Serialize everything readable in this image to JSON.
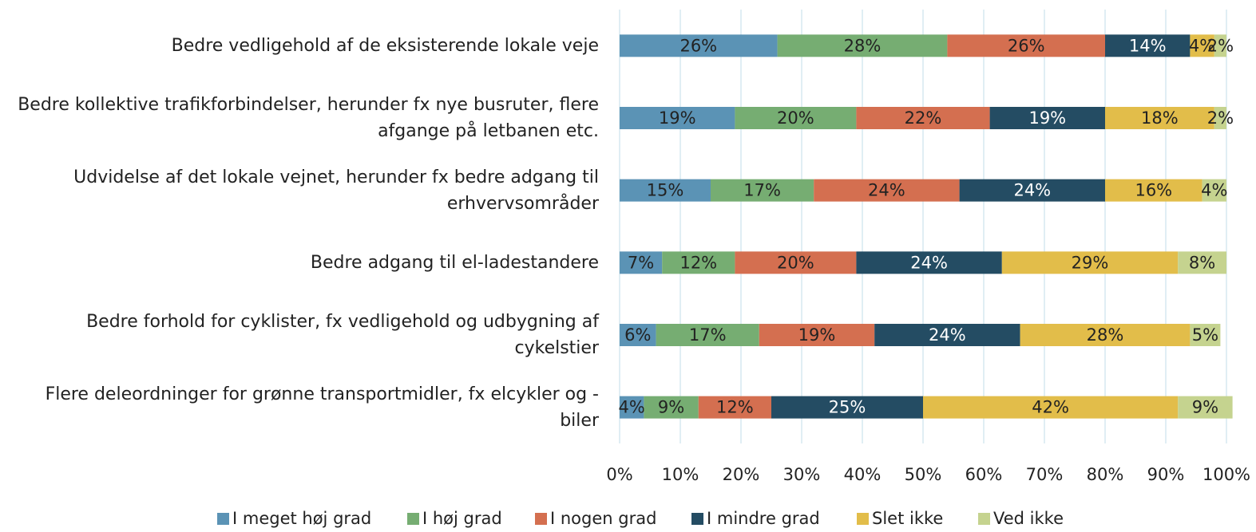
{
  "chart_data": {
    "type": "stacked-bar-horizontal",
    "categories": [
      "Bedre vedligehold af de eksisterende lokale veje",
      "Bedre kollektive trafikforbindelser, herunder fx nye busruter, flere afgange på letbanen etc.",
      "Udvidelse af det lokale vejnet, herunder fx bedre adgang til erhvervsområder",
      "Bedre adgang til el-ladestandere",
      "Bedre forhold for cyklister, fx vedligehold og udbygning af cykelstier",
      "Flere deleordninger for grønne transportmidler, fx elcykler og -biler"
    ],
    "series": [
      {
        "name": "I meget høj grad",
        "color": "#5b93b5",
        "values": [
          26,
          19,
          15,
          7,
          6,
          4
        ],
        "value_labels": [
          "26%",
          "19%",
          "15%",
          "7%",
          "6%",
          "4%"
        ]
      },
      {
        "name": "I høj grad",
        "color": "#76ad72",
        "values": [
          28,
          20,
          17,
          12,
          17,
          9
        ],
        "value_labels": [
          "28%",
          "20%",
          "17%",
          "12%",
          "17%",
          "9%"
        ]
      },
      {
        "name": "I nogen grad",
        "color": "#d46f50",
        "values": [
          26,
          22,
          24,
          20,
          19,
          12
        ],
        "value_labels": [
          "26%",
          "22%",
          "24%",
          "20%",
          "19%",
          "12%"
        ]
      },
      {
        "name": "I mindre grad",
        "color": "#244c63",
        "values": [
          14,
          19,
          24,
          24,
          24,
          25
        ],
        "value_labels": [
          "14%",
          "19%",
          "24%",
          "24%",
          "24%",
          "25%"
        ]
      },
      {
        "name": "Slet ikke",
        "color": "#e2bd4a",
        "values": [
          4,
          18,
          16,
          29,
          28,
          42
        ],
        "value_labels": [
          "4%",
          "18%",
          "16%",
          "29%",
          "28%",
          "42%"
        ]
      },
      {
        "name": "Ved ikke",
        "color": "#c5d38f",
        "values": [
          2,
          2,
          4,
          8,
          5,
          9
        ],
        "value_labels": [
          "2%",
          "2%",
          "4%",
          "8%",
          "5%",
          "9%"
        ]
      }
    ],
    "xlim": [
      0,
      100
    ],
    "xticks": [
      {
        "value": 0,
        "label": "0%"
      },
      {
        "value": 10,
        "label": "10%"
      },
      {
        "value": 20,
        "label": "20%"
      },
      {
        "value": 30,
        "label": "30%"
      },
      {
        "value": 40,
        "label": "40%"
      },
      {
        "value": 50,
        "label": "50%"
      },
      {
        "value": 60,
        "label": "60%"
      },
      {
        "value": 70,
        "label": "70%"
      },
      {
        "value": 80,
        "label": "80%"
      },
      {
        "value": 90,
        "label": "90%"
      },
      {
        "value": 100,
        "label": "100%"
      }
    ],
    "grid": true,
    "legend": "bottom"
  }
}
